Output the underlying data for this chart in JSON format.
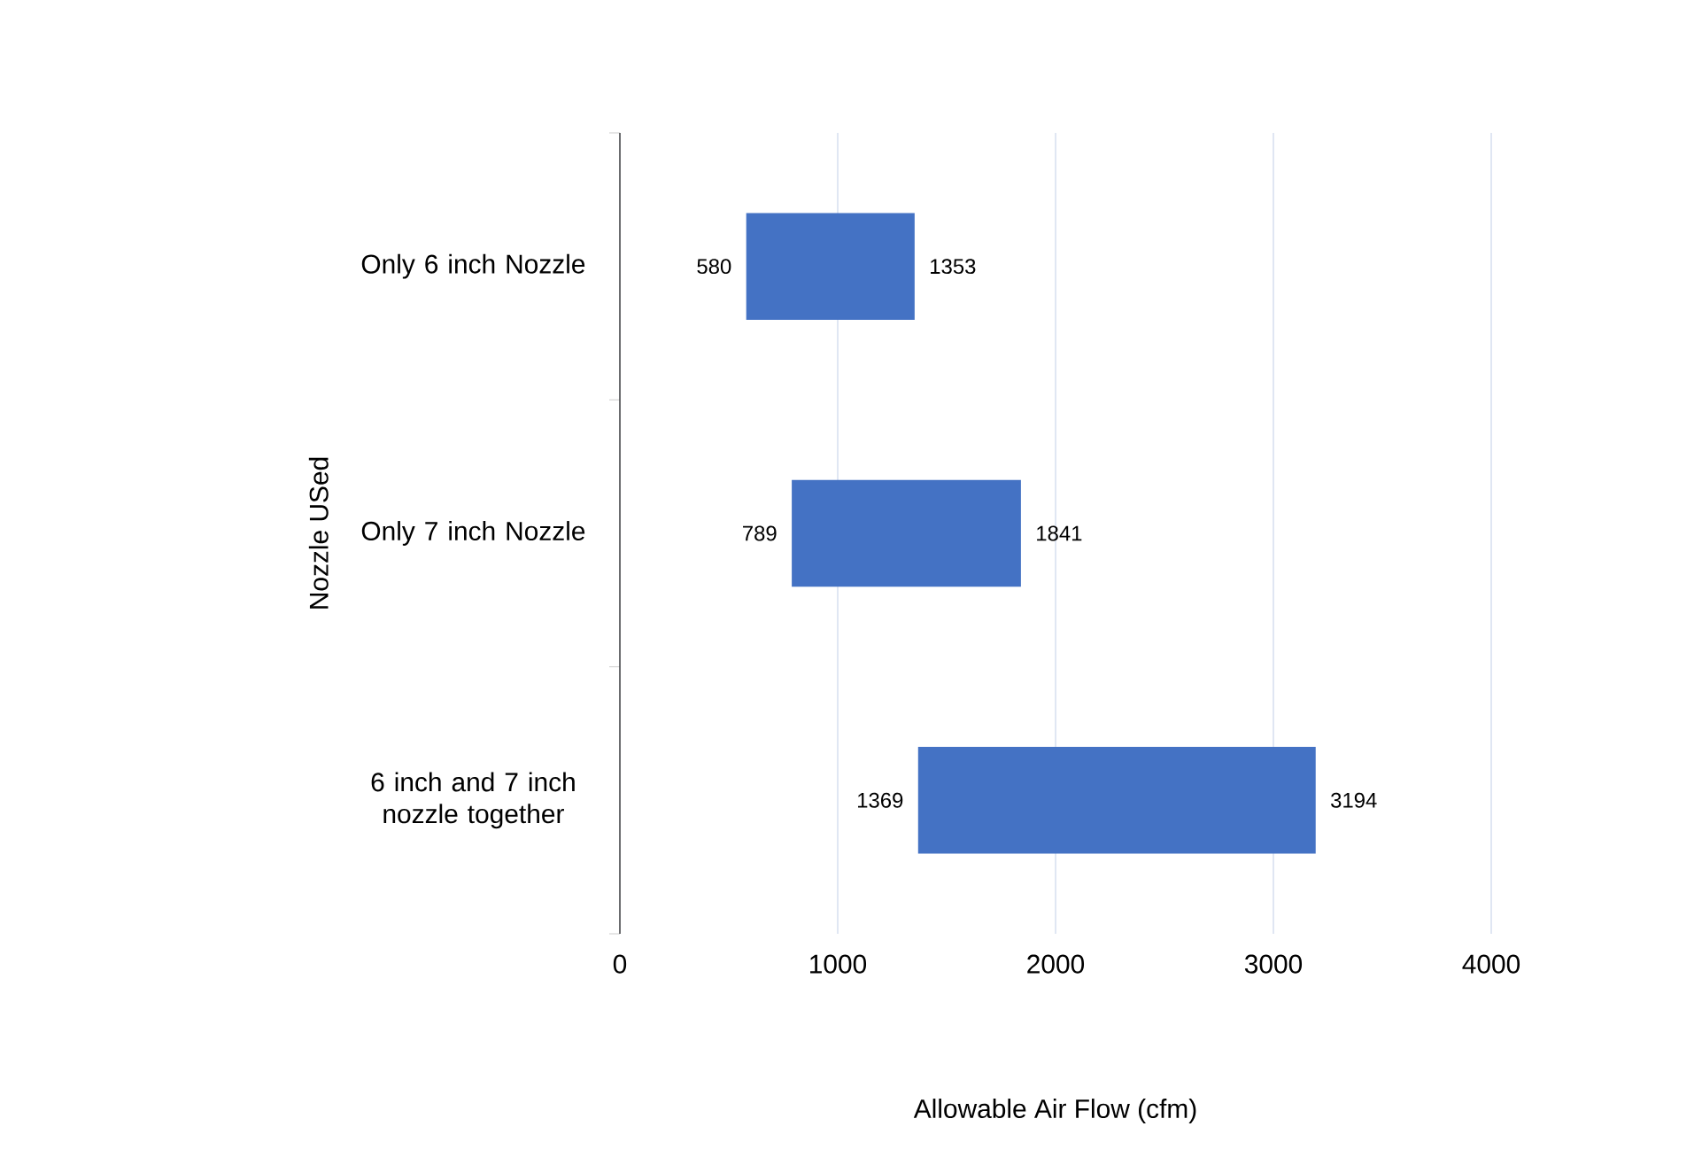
{
  "chart_data": {
    "type": "bar",
    "orientation": "horizontal",
    "xlabel": "Allowable Air Flow (cfm)",
    "ylabel": "Nozzle USed",
    "categories": [
      "Only 6 inch Nozzle",
      "Only 7 inch Nozzle",
      "6 inch and 7 inch nozzle together"
    ],
    "base": [
      580,
      789,
      1369
    ],
    "values": [
      773,
      1052,
      1825
    ],
    "color": "#4472c4",
    "xlim": [
      0,
      4000
    ],
    "xticks": [
      0,
      1000,
      2000,
      3000,
      4000
    ],
    "grid": "x",
    "value_labels": [
      "1353",
      "1841",
      "3194"
    ],
    "annotations": [
      "580",
      "789",
      "1369"
    ]
  }
}
